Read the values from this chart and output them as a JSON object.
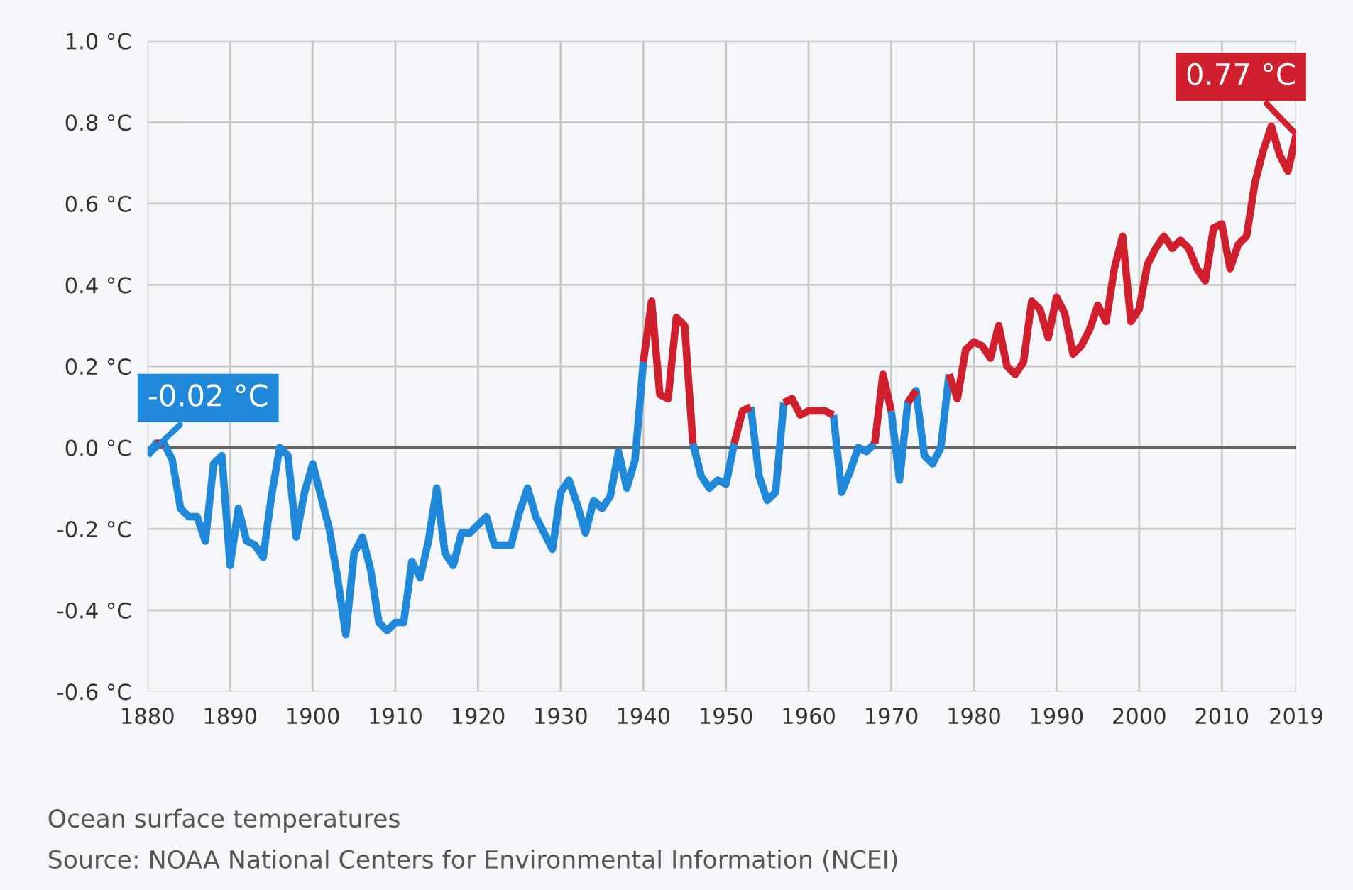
{
  "chart_data": {
    "type": "line",
    "x": [
      1880,
      1881,
      1882,
      1883,
      1884,
      1885,
      1886,
      1887,
      1888,
      1889,
      1890,
      1891,
      1892,
      1893,
      1894,
      1895,
      1896,
      1897,
      1898,
      1899,
      1900,
      1901,
      1902,
      1903,
      1904,
      1905,
      1906,
      1907,
      1908,
      1909,
      1910,
      1911,
      1912,
      1913,
      1914,
      1915,
      1916,
      1917,
      1918,
      1919,
      1920,
      1921,
      1922,
      1923,
      1924,
      1925,
      1926,
      1927,
      1928,
      1929,
      1930,
      1931,
      1932,
      1933,
      1934,
      1935,
      1936,
      1937,
      1938,
      1939,
      1940,
      1941,
      1942,
      1943,
      1944,
      1945,
      1946,
      1947,
      1948,
      1949,
      1950,
      1951,
      1952,
      1953,
      1954,
      1955,
      1956,
      1957,
      1958,
      1959,
      1960,
      1961,
      1962,
      1963,
      1964,
      1965,
      1966,
      1967,
      1968,
      1969,
      1970,
      1971,
      1972,
      1973,
      1974,
      1975,
      1976,
      1977,
      1978,
      1979,
      1980,
      1981,
      1982,
      1983,
      1984,
      1985,
      1986,
      1987,
      1988,
      1989,
      1990,
      1991,
      1992,
      1993,
      1994,
      1995,
      1996,
      1997,
      1998,
      1999,
      2000,
      2001,
      2002,
      2003,
      2004,
      2005,
      2006,
      2007,
      2008,
      2009,
      2010,
      2011,
      2012,
      2013,
      2014,
      2015,
      2016,
      2017,
      2018,
      2019
    ],
    "series": [
      {
        "color": "#1f88d9",
        "values": [
          -0.02,
          0.01,
          0.01,
          -0.03,
          -0.15,
          -0.17,
          -0.17,
          -0.23,
          -0.04,
          -0.02,
          -0.29,
          -0.15,
          -0.23,
          -0.24,
          -0.27,
          -0.12,
          0.0,
          -0.02,
          -0.22,
          -0.11,
          -0.04,
          -0.12,
          -0.2,
          -0.32,
          -0.46,
          -0.26,
          -0.22,
          -0.3,
          -0.43,
          -0.45,
          -0.43,
          -0.43,
          -0.28,
          -0.32,
          -0.23,
          -0.1,
          -0.26,
          -0.29,
          -0.21,
          -0.21,
          -0.19,
          -0.17,
          -0.24,
          -0.24,
          -0.24,
          -0.16,
          -0.1,
          -0.17,
          -0.21,
          -0.25,
          -0.11,
          -0.08,
          -0.14,
          -0.21,
          -0.13,
          -0.15,
          -0.12,
          -0.01,
          -0.1,
          -0.03,
          0.21,
          null,
          null,
          null,
          null,
          null,
          0.01,
          -0.07,
          -0.1,
          -0.08,
          -0.09,
          0.01,
          null,
          0.1,
          -0.07,
          -0.13,
          -0.11,
          0.11,
          null,
          null,
          null,
          null,
          null,
          0.08,
          -0.11,
          -0.06,
          0.0,
          -0.01,
          0.01,
          null,
          0.09,
          -0.08,
          0.11,
          0.14,
          -0.02,
          -0.04,
          0.0,
          0.18,
          null,
          null,
          null,
          null,
          null,
          null,
          null,
          null,
          null,
          null,
          null,
          null,
          null,
          null,
          null,
          null,
          null,
          null,
          null,
          null,
          null,
          null,
          null,
          null,
          null,
          null,
          null,
          null,
          null,
          null,
          null,
          null,
          null,
          null,
          null,
          null,
          null,
          null,
          null,
          null,
          null,
          null
        ]
      },
      {
        "color": "#d0202e",
        "values": [
          null,
          0.01,
          0.01,
          null,
          null,
          null,
          null,
          null,
          null,
          null,
          null,
          null,
          null,
          null,
          null,
          null,
          null,
          null,
          null,
          null,
          null,
          null,
          null,
          null,
          null,
          null,
          null,
          null,
          null,
          null,
          null,
          null,
          null,
          null,
          null,
          null,
          null,
          null,
          null,
          null,
          null,
          null,
          null,
          null,
          null,
          null,
          null,
          null,
          null,
          null,
          null,
          null,
          null,
          null,
          null,
          null,
          null,
          null,
          null,
          null,
          0.21,
          0.36,
          0.13,
          0.12,
          0.32,
          0.3,
          0.01,
          null,
          null,
          null,
          null,
          0.01,
          0.09,
          0.1,
          null,
          null,
          null,
          0.11,
          0.12,
          0.08,
          0.09,
          0.09,
          0.09,
          0.08,
          null,
          null,
          null,
          null,
          0.01,
          0.18,
          0.09,
          null,
          0.11,
          0.14,
          null,
          null,
          null,
          0.18,
          0.12,
          0.24,
          0.26,
          0.25,
          0.22,
          0.3,
          0.2,
          0.18,
          0.21,
          0.36,
          0.34,
          0.27,
          0.37,
          0.33,
          0.23,
          0.25,
          0.29,
          0.35,
          0.31,
          0.44,
          0.52,
          0.31,
          0.34,
          0.45,
          0.49,
          0.52,
          0.49,
          0.51,
          0.49,
          0.44,
          0.41,
          0.54,
          0.55,
          0.44,
          0.5,
          0.52,
          0.65,
          0.73,
          0.79,
          0.72,
          0.68,
          0.77
        ]
      }
    ],
    "xlim": [
      1880,
      2019
    ],
    "xticks": [
      1880,
      1890,
      1900,
      1910,
      1920,
      1930,
      1940,
      1950,
      1960,
      1970,
      1980,
      1990,
      2000,
      2010,
      2019
    ],
    "ylim": [
      -0.6,
      1.0
    ],
    "yticks": [
      {
        "value": -0.6,
        "label": "-0.6 °C"
      },
      {
        "value": -0.4,
        "label": "-0.4 °C"
      },
      {
        "value": -0.2,
        "label": "-0.2 °C"
      },
      {
        "value": 0.0,
        "label": "0.0 °C"
      },
      {
        "value": 0.2,
        "label": "0.2 °C"
      },
      {
        "value": 0.4,
        "label": "0.4 °C"
      },
      {
        "value": 0.6,
        "label": "0.6 °C"
      },
      {
        "value": 0.8,
        "label": "0.8 °C"
      },
      {
        "value": 1.0,
        "label": "1.0 °C"
      }
    ],
    "grid": true,
    "ref_lines": [
      {
        "axis": "y",
        "value": 0.0,
        "color": "#666666"
      }
    ],
    "annotations": [
      {
        "text": "-0.02 °C",
        "x": 1880,
        "y": -0.02
      },
      {
        "text": "0.77 °C",
        "x": 2019,
        "y": 0.77
      },
      "Ocean surface temperatures",
      "Source: NOAA National Centers for Environmental Information (NCEI)"
    ]
  }
}
